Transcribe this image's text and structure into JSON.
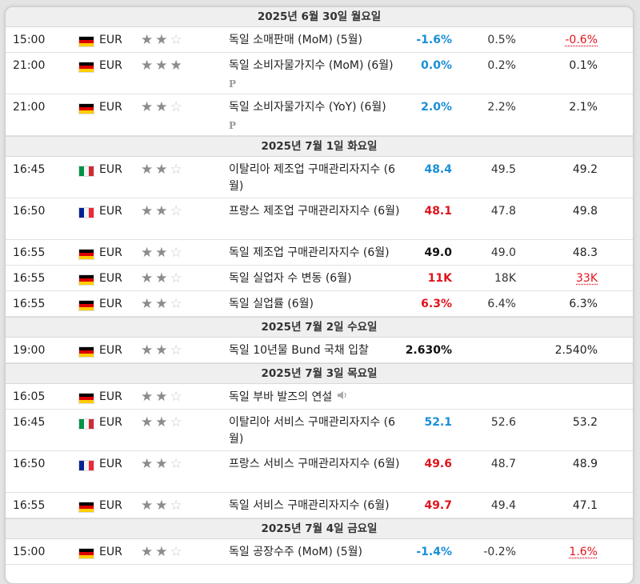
{
  "days": [
    {
      "header": "2025년 6월 30일 월요일",
      "events": [
        {
          "time": "15:00",
          "flag": "de",
          "currency": "EUR",
          "importance": 2,
          "event": "독일 소매판매 (MoM) (5월)",
          "actual": "-1.6%",
          "actual_class": "pos",
          "forecast": "0.5%",
          "previous": "-0.6%",
          "previous_class": "prev-red",
          "rows": 1
        },
        {
          "time": "21:00",
          "flag": "de",
          "currency": "EUR",
          "importance": 3,
          "event": "독일 소비자물가지수 (MoM) (6월)",
          "badge": "P",
          "actual": "0.0%",
          "actual_class": "pos",
          "forecast": "0.2%",
          "previous": "0.1%",
          "previous_class": "",
          "rows": 2
        },
        {
          "time": "21:00",
          "flag": "de",
          "currency": "EUR",
          "importance": 2,
          "event": "독일 소비자물가지수 (YoY) (6월)",
          "badge": "P",
          "actual": "2.0%",
          "actual_class": "pos",
          "forecast": "2.2%",
          "previous": "2.1%",
          "previous_class": "",
          "rows": 2
        }
      ]
    },
    {
      "header": "2025년 7월 1일 화요일",
      "events": [
        {
          "time": "16:45",
          "flag": "it",
          "currency": "EUR",
          "importance": 2,
          "event": "이탈리아 제조업 구매관리자지수 (6월)",
          "actual": "48.4",
          "actual_class": "pos",
          "forecast": "49.5",
          "previous": "49.2",
          "previous_class": "",
          "rows": 2
        },
        {
          "time": "16:50",
          "flag": "fr",
          "currency": "EUR",
          "importance": 2,
          "event": "프랑스 제조업 구매관리자지수 (6월)",
          "actual": "48.1",
          "actual_class": "neg",
          "forecast": "47.8",
          "previous": "49.8",
          "previous_class": "",
          "rows": 2
        },
        {
          "time": "16:55",
          "flag": "de",
          "currency": "EUR",
          "importance": 2,
          "event": "독일 제조업 구매관리자지수 (6월)",
          "actual": "49.0",
          "actual_class": "neu",
          "forecast": "49.0",
          "previous": "48.3",
          "previous_class": "",
          "rows": 1
        },
        {
          "time": "16:55",
          "flag": "de",
          "currency": "EUR",
          "importance": 2,
          "event": "독일 실업자 수 변동 (6월)",
          "actual": "11K",
          "actual_class": "neg",
          "forecast": "18K",
          "previous": "33K",
          "previous_class": "prev-red",
          "rows": 1
        },
        {
          "time": "16:55",
          "flag": "de",
          "currency": "EUR",
          "importance": 2,
          "event": "독일 실업률 (6월)",
          "actual": "6.3%",
          "actual_class": "neg",
          "forecast": "6.4%",
          "previous": "6.3%",
          "previous_class": "",
          "rows": 1
        }
      ]
    },
    {
      "header": "2025년 7월 2일 수요일",
      "events": [
        {
          "time": "19:00",
          "flag": "de",
          "currency": "EUR",
          "importance": 2,
          "event": "독일 10년물 Bund 국채 입찰",
          "actual": "2.630%",
          "actual_class": "neu",
          "forecast": "",
          "previous": "2.540%",
          "previous_class": "",
          "rows": 1
        }
      ]
    },
    {
      "header": "2025년 7월 3일 목요일",
      "events": [
        {
          "time": "16:05",
          "flag": "de",
          "currency": "EUR",
          "importance": 2,
          "event": "독일 부바 발즈의 연설",
          "speech": true,
          "actual": "",
          "actual_class": "",
          "forecast": "",
          "previous": "",
          "previous_class": "",
          "rows": 1
        },
        {
          "time": "16:45",
          "flag": "it",
          "currency": "EUR",
          "importance": 2,
          "event": "이탈리아 서비스 구매관리자지수 (6월)",
          "actual": "52.1",
          "actual_class": "pos",
          "forecast": "52.6",
          "previous": "53.2",
          "previous_class": "",
          "rows": 2
        },
        {
          "time": "16:50",
          "flag": "fr",
          "currency": "EUR",
          "importance": 2,
          "event": "프랑스 서비스 구매관리자지수 (6월)",
          "actual": "49.6",
          "actual_class": "neg",
          "forecast": "48.7",
          "previous": "48.9",
          "previous_class": "",
          "rows": 2
        },
        {
          "time": "16:55",
          "flag": "de",
          "currency": "EUR",
          "importance": 2,
          "event": "독일 서비스 구매관리자지수 (6월)",
          "actual": "49.7",
          "actual_class": "neg",
          "forecast": "49.4",
          "previous": "47.1",
          "previous_class": "",
          "rows": 1
        }
      ]
    },
    {
      "header": "2025년 7월 4일 금요일",
      "events": [
        {
          "time": "15:00",
          "flag": "de",
          "currency": "EUR",
          "importance": 2,
          "event": "독일 공장수주 (MoM) (5월)",
          "actual": "-1.4%",
          "actual_class": "pos",
          "forecast": "-0.2%",
          "previous": "1.6%",
          "previous_class": "prev-red",
          "rows": 1
        }
      ]
    }
  ],
  "flags": {
    "de": [
      "#000000",
      "#dd0000",
      "#ffce00"
    ],
    "it": [
      "#009246",
      "#ffffff",
      "#ce2b37"
    ],
    "fr": [
      "#002395",
      "#ffffff",
      "#ed2939"
    ]
  },
  "icons": {
    "star": "star-icon",
    "speaker": "speaker-icon",
    "flag": "flag-icon"
  }
}
